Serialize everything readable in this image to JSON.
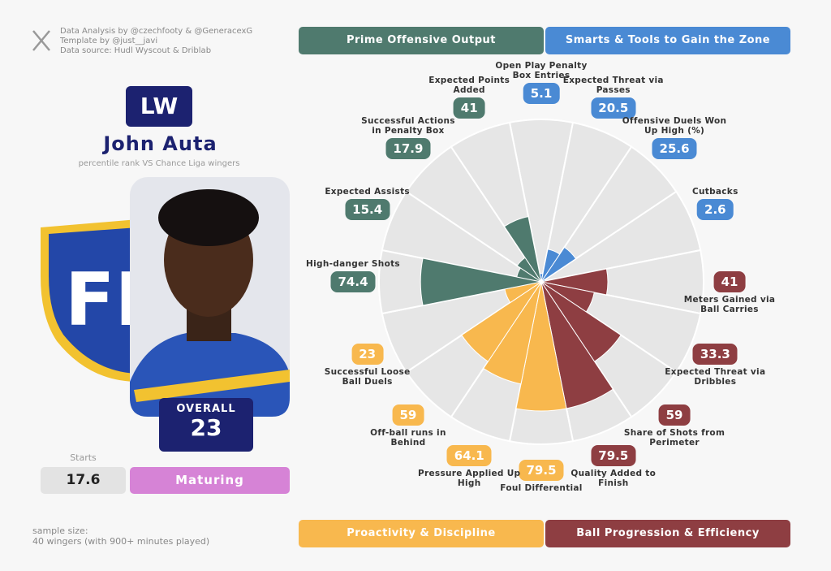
{
  "header": {
    "credits": [
      "Data Analysis by @czechfooty & @GeneracexG",
      "Template by @just__javi",
      "Data source: Hudl Wyscout & Driblab"
    ]
  },
  "player": {
    "position": "LW",
    "name": "John Auta",
    "subtitle": "percentile rank VS Chance Liga wingers",
    "overall_label": "OVERALL",
    "overall": "23",
    "starts_label": "Starts",
    "starts": "17.6",
    "status": "Maturing"
  },
  "footer": {
    "sample_size": [
      "sample size:",
      "40 wingers (with 900+ minutes played)"
    ]
  },
  "chart_data": {
    "type": "pizza",
    "rlim": [
      0,
      100
    ],
    "series": [
      {
        "name": "Smarts & Tools to Gain the Zone",
        "color": "#4a8ad4",
        "categories": [
          "Open Play Penalty Box Entries",
          "Expected Threat via Passes",
          "Offensive Duels Won Up High (%)",
          "Cutbacks"
        ],
        "values": [
          5.1,
          20.5,
          25.6,
          2.6
        ]
      },
      {
        "name": "Ball Progression & Efficiency",
        "color": "#8e3e42",
        "categories": [
          "Meters Gained via Ball Carries",
          "Expected Threat via Dribbles",
          "Share of Shots from Perimeter",
          "Quality Added to Finish"
        ],
        "values": [
          41,
          33.3,
          59,
          79.5
        ]
      },
      {
        "name": "Proactivity & Discipline",
        "color": "#f8b84e",
        "categories": [
          "Foul Differential",
          "Pressure Applied Up High",
          "Off-ball runs in Behind",
          "Successful Loose Ball Duels"
        ],
        "values": [
          79.5,
          64.1,
          59,
          23
        ]
      },
      {
        "name": "Prime Offensive Output",
        "color": "#4f7a6e",
        "categories": [
          "High-danger Shots",
          "Expected Assists",
          "Successful Actions in Penalty Box",
          "Expected Points Added"
        ],
        "values": [
          74.4,
          15.4,
          17.9,
          41
        ]
      }
    ]
  }
}
